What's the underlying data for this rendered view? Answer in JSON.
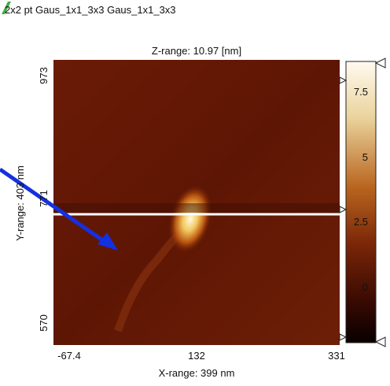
{
  "header": {
    "title": "2x2 pt Gaus_1x1_3x3 Gaus_1x1_3x3"
  },
  "image": {
    "z_range": "Z-range:  10.97 [nm]",
    "y_range": "Y-range:  403 nm",
    "x_range": "X-range:  399 nm",
    "y_ticks": [
      "973",
      "771",
      "570"
    ],
    "x_ticks": [
      "-67.4",
      "132",
      "331"
    ]
  },
  "colorbar": {
    "ticks": [
      "7.5",
      "5",
      "2.5",
      "0"
    ]
  }
}
